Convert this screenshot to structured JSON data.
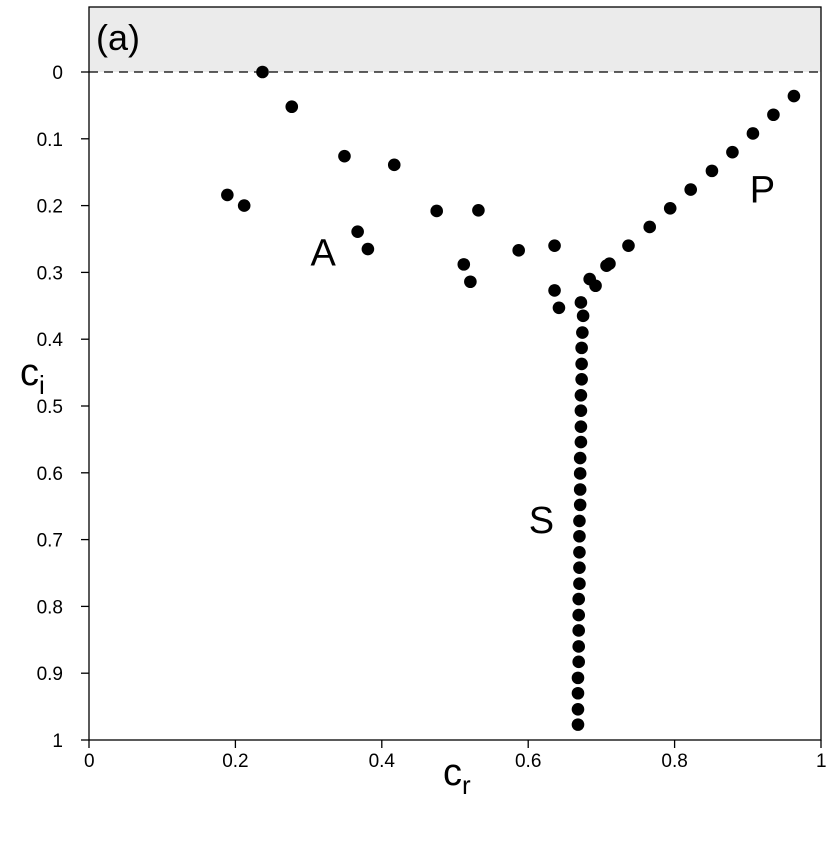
{
  "chart_data": {
    "type": "scatter",
    "panel_label": "(a)",
    "xlabel": {
      "main": "c",
      "sub": "r"
    },
    "ylabel": {
      "main": "c",
      "sub": "i"
    },
    "xlim": [
      0,
      1
    ],
    "ylim_inverted": [
      1,
      -0.1
    ],
    "y_axis_inverted": true,
    "shaded_region": {
      "from": -0.1,
      "to": 0,
      "color": "#ebebeb"
    },
    "reference_line": {
      "y": 0,
      "style": "dashed"
    },
    "x_ticks": [
      {
        "value": 0,
        "label": "0"
      },
      {
        "value": 0.2,
        "label": "0.2"
      },
      {
        "value": 0.4,
        "label": "0.4"
      },
      {
        "value": 0.6,
        "label": "0.6"
      },
      {
        "value": 0.8,
        "label": "0.8"
      },
      {
        "value": 1,
        "label": "1"
      }
    ],
    "y_ticks": [
      {
        "value": 0,
        "label": "0"
      },
      {
        "value": 0.1,
        "label": "0.1"
      },
      {
        "value": 0.2,
        "label": "0.2"
      },
      {
        "value": 0.3,
        "label": "0.3"
      },
      {
        "value": 0.4,
        "label": "0.4"
      },
      {
        "value": 0.5,
        "label": "0.5"
      },
      {
        "value": 0.6,
        "label": "0.6"
      },
      {
        "value": 0.7,
        "label": "0.7"
      },
      {
        "value": 0.8,
        "label": "0.8"
      },
      {
        "value": 0.9,
        "label": "0.9"
      },
      {
        "value": 1,
        "label": "1"
      }
    ],
    "annotations": [
      {
        "text": "A",
        "x": 0.32,
        "y": 0.29
      },
      {
        "text": "P",
        "x": 0.92,
        "y": 0.195
      },
      {
        "text": "S",
        "x": 0.618,
        "y": 0.69
      }
    ],
    "series": [
      {
        "marker_color": "#000000",
        "points": [
          [
            0.237,
            0.0
          ],
          [
            0.277,
            0.052
          ],
          [
            0.349,
            0.126
          ],
          [
            0.417,
            0.139
          ],
          [
            0.189,
            0.184
          ],
          [
            0.212,
            0.2
          ],
          [
            0.475,
            0.208
          ],
          [
            0.532,
            0.207
          ],
          [
            0.367,
            0.239
          ],
          [
            0.381,
            0.265
          ],
          [
            0.512,
            0.288
          ],
          [
            0.521,
            0.314
          ],
          [
            0.587,
            0.267
          ],
          [
            0.636,
            0.26
          ],
          [
            0.636,
            0.327
          ],
          [
            0.642,
            0.353
          ],
          [
            0.672,
            0.345
          ],
          [
            0.684,
            0.31
          ],
          [
            0.692,
            0.32
          ],
          [
            0.707,
            0.29
          ],
          [
            0.711,
            0.287
          ],
          [
            0.737,
            0.26
          ],
          [
            0.766,
            0.232
          ],
          [
            0.794,
            0.204
          ],
          [
            0.822,
            0.176
          ],
          [
            0.851,
            0.148
          ],
          [
            0.879,
            0.12
          ],
          [
            0.907,
            0.092
          ],
          [
            0.935,
            0.064
          ],
          [
            0.963,
            0.036
          ],
          [
            0.675,
            0.365
          ],
          [
            0.674,
            0.39
          ],
          [
            0.673,
            0.413
          ],
          [
            0.673,
            0.437
          ],
          [
            0.673,
            0.46
          ],
          [
            0.672,
            0.484
          ],
          [
            0.672,
            0.507
          ],
          [
            0.672,
            0.531
          ],
          [
            0.672,
            0.554
          ],
          [
            0.671,
            0.578
          ],
          [
            0.671,
            0.601
          ],
          [
            0.671,
            0.625
          ],
          [
            0.671,
            0.648
          ],
          [
            0.67,
            0.672
          ],
          [
            0.67,
            0.695
          ],
          [
            0.67,
            0.719
          ],
          [
            0.67,
            0.742
          ],
          [
            0.67,
            0.766
          ],
          [
            0.669,
            0.789
          ],
          [
            0.669,
            0.813
          ],
          [
            0.669,
            0.836
          ],
          [
            0.669,
            0.86
          ],
          [
            0.669,
            0.883
          ],
          [
            0.668,
            0.907
          ],
          [
            0.668,
            0.93
          ],
          [
            0.668,
            0.954
          ],
          [
            0.668,
            0.977
          ]
        ]
      }
    ]
  }
}
